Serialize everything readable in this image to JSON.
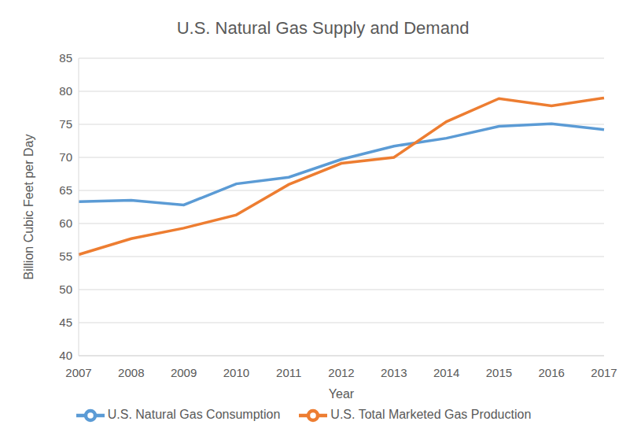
{
  "chart_data": {
    "type": "line",
    "title": "U.S. Natural Gas Supply and Demand",
    "x_label": "Year",
    "y_label": "Billion Cubic Feet per Day",
    "categories": [
      "2007",
      "2008",
      "2009",
      "2010",
      "2011",
      "2012",
      "2013",
      "2014",
      "2015",
      "2016",
      "2017"
    ],
    "series": [
      {
        "name": "U.S. Natural Gas Consumption",
        "color": "#5b9bd5",
        "values": [
          63.3,
          63.5,
          62.8,
          66.0,
          67.0,
          69.7,
          71.7,
          72.9,
          74.7,
          75.1,
          74.2
        ]
      },
      {
        "name": "U.S. Total Marketed Gas Production",
        "color": "#ed7d31",
        "values": [
          55.3,
          57.7,
          59.3,
          61.3,
          65.9,
          69.1,
          70.0,
          75.4,
          78.9,
          77.8,
          79.0
        ]
      }
    ],
    "ylim": [
      40,
      85
    ],
    "yticks": [
      40,
      45,
      50,
      55,
      60,
      65,
      70,
      75,
      80,
      85
    ],
    "grid": true,
    "legend": "bottom"
  }
}
